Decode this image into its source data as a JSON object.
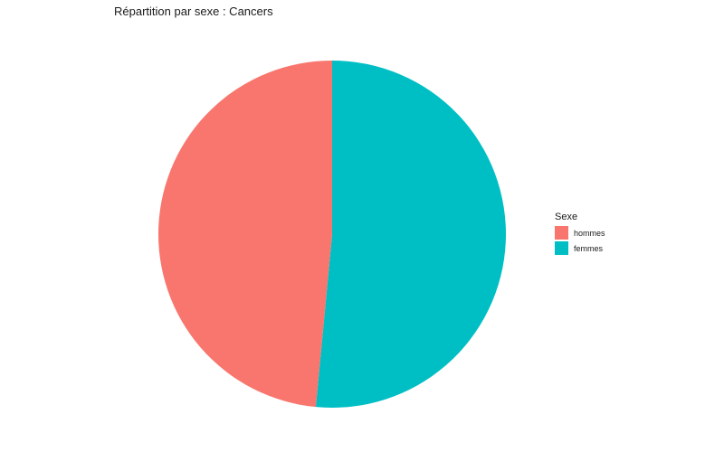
{
  "chart_data": {
    "type": "pie",
    "title": "Répartition par sexe : Cancers",
    "legend_title": "Sexe",
    "legend_position": "right",
    "slices": [
      {
        "label": "femmes",
        "value": 51.5,
        "color": "#00BFC4"
      },
      {
        "label": "hommes",
        "value": 48.5,
        "color": "#F8766D"
      }
    ],
    "legend_order": [
      "hommes",
      "femmes"
    ]
  }
}
